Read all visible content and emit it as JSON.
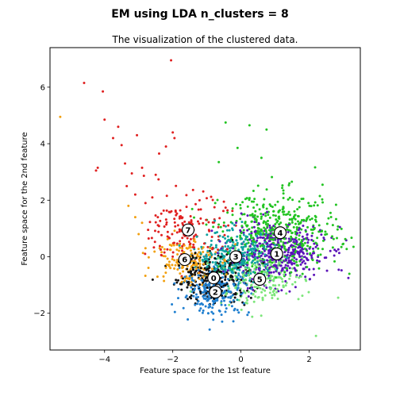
{
  "figure": {
    "suptitle": "EM using LDA  n_clusters = 8"
  },
  "chart_data": {
    "type": "scatter",
    "title": "The visualization of the clustered data.",
    "xlabel": "Feature space for the 1st feature",
    "ylabel": "Feature space for the 2nd feature",
    "xlim": [
      -5.6,
      3.5
    ],
    "ylim": [
      -3.3,
      7.4
    ],
    "xticks": [
      -4,
      -2,
      0,
      2
    ],
    "yticks": [
      -2,
      0,
      2,
      4,
      6
    ],
    "xtick_labels": [
      "−4",
      "−2",
      "0",
      "2"
    ],
    "ytick_labels": [
      "−2",
      "0",
      "2",
      "4",
      "6"
    ],
    "grid": false,
    "legend": "none",
    "marker_size": 2,
    "clusters": [
      {
        "id": 0,
        "label": "0",
        "color": "#111111",
        "center": [
          -0.8,
          -0.75
        ],
        "spread": [
          0.55,
          0.45
        ],
        "count": 260
      },
      {
        "id": 1,
        "label": "1",
        "color": "#5b14b8",
        "center": [
          1.05,
          0.1
        ],
        "spread": [
          0.7,
          0.5
        ],
        "count": 420
      },
      {
        "id": 2,
        "label": "2",
        "color": "#1f7fd0",
        "center": [
          -0.75,
          -1.25
        ],
        "spread": [
          0.5,
          0.4
        ],
        "count": 220
      },
      {
        "id": 3,
        "label": "3",
        "color": "#10a3a0",
        "center": [
          -0.15,
          0.0
        ],
        "spread": [
          0.55,
          0.45
        ],
        "count": 330
      },
      {
        "id": 4,
        "label": "4",
        "color": "#22c422",
        "center": [
          1.15,
          0.85
        ],
        "spread": [
          0.85,
          0.7
        ],
        "count": 460
      },
      {
        "id": 5,
        "label": "5",
        "color": "#7ce67a",
        "center": [
          0.55,
          -0.8
        ],
        "spread": [
          0.65,
          0.45
        ],
        "count": 200
      },
      {
        "id": 6,
        "label": "6",
        "color": "#f2a010",
        "center": [
          -1.65,
          -0.1
        ],
        "spread": [
          0.45,
          0.45
        ],
        "count": 160
      },
      {
        "id": 7,
        "label": "7",
        "color": "#e02020",
        "center": [
          -1.55,
          0.95
        ],
        "spread": [
          0.55,
          0.6
        ],
        "count": 160
      }
    ],
    "outliers": [
      {
        "x": -5.3,
        "y": 4.95,
        "cluster": 6
      },
      {
        "x": -4.6,
        "y": 6.15,
        "cluster": 7
      },
      {
        "x": -4.05,
        "y": 5.85,
        "cluster": 7
      },
      {
        "x": -4.0,
        "y": 4.85,
        "cluster": 7
      },
      {
        "x": -3.6,
        "y": 4.6,
        "cluster": 7
      },
      {
        "x": -3.75,
        "y": 4.2,
        "cluster": 7
      },
      {
        "x": -3.5,
        "y": 3.95,
        "cluster": 7
      },
      {
        "x": -4.25,
        "y": 3.05,
        "cluster": 7
      },
      {
        "x": -4.2,
        "y": 3.15,
        "cluster": 7
      },
      {
        "x": -3.4,
        "y": 3.3,
        "cluster": 7
      },
      {
        "x": -3.05,
        "y": 4.3,
        "cluster": 7
      },
      {
        "x": -2.05,
        "y": 6.95,
        "cluster": 7
      },
      {
        "x": -2.0,
        "y": 4.4,
        "cluster": 7
      },
      {
        "x": -1.95,
        "y": 4.2,
        "cluster": 7
      },
      {
        "x": -2.4,
        "y": 3.65,
        "cluster": 7
      },
      {
        "x": -2.2,
        "y": 3.9,
        "cluster": 7
      },
      {
        "x": -3.35,
        "y": 2.5,
        "cluster": 7
      },
      {
        "x": -2.9,
        "y": 3.15,
        "cluster": 7
      },
      {
        "x": -3.2,
        "y": 2.95,
        "cluster": 7
      },
      {
        "x": -2.6,
        "y": 2.1,
        "cluster": 7
      },
      {
        "x": -2.8,
        "y": 1.9,
        "cluster": 7
      },
      {
        "x": -3.1,
        "y": 2.2,
        "cluster": 7
      },
      {
        "x": -2.5,
        "y": 2.9,
        "cluster": 7
      },
      {
        "x": -3.3,
        "y": 1.8,
        "cluster": 6
      },
      {
        "x": -3.1,
        "y": 1.4,
        "cluster": 6
      },
      {
        "x": -2.9,
        "y": 1.2,
        "cluster": 6
      },
      {
        "x": -3.0,
        "y": 0.8,
        "cluster": 6
      },
      {
        "x": -2.8,
        "y": 0.3,
        "cluster": 6
      },
      {
        "x": -0.45,
        "y": 4.75,
        "cluster": 4
      },
      {
        "x": 0.25,
        "y": 4.65,
        "cluster": 4
      },
      {
        "x": 0.75,
        "y": 4.5,
        "cluster": 4
      },
      {
        "x": -0.1,
        "y": 3.85,
        "cluster": 4
      },
      {
        "x": 0.6,
        "y": 3.5,
        "cluster": 4
      },
      {
        "x": -0.65,
        "y": 3.35,
        "cluster": 4
      },
      {
        "x": 2.2,
        "y": -2.8,
        "cluster": 5
      },
      {
        "x": 2.85,
        "y": -1.45,
        "cluster": 5
      },
      {
        "x": 3.15,
        "y": -0.75,
        "cluster": 1
      },
      {
        "x": 3.3,
        "y": 0.35,
        "cluster": 4
      },
      {
        "x": 2.9,
        "y": 1.05,
        "cluster": 1
      }
    ]
  }
}
